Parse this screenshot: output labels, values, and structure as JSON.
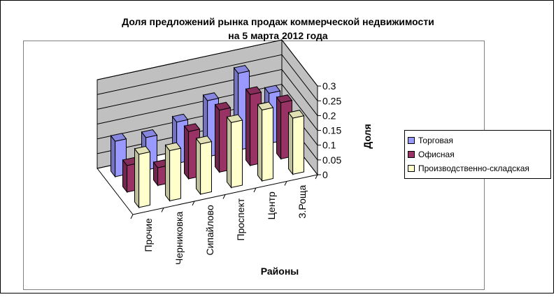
{
  "chart_data": {
    "type": "bar",
    "subtype": "3d-clustered-column",
    "title": [
      "Доля предложений рынка продаж коммерческой недвижимости",
      "на 5 марта 2012 года"
    ],
    "xlabel": "Районы",
    "ylabel": "Доля",
    "categories": [
      "Прочие",
      "Черниковка",
      "Сипайлово",
      "Проспект",
      "Центр",
      "З.Роща"
    ],
    "series": [
      {
        "name": "Торговая",
        "color": "#9999FF",
        "values": [
          0.12,
          0.11,
          0.14,
          0.19,
          0.26,
          0.17
        ]
      },
      {
        "name": "Офисная",
        "color": "#993366",
        "values": [
          0.09,
          0.06,
          0.16,
          0.21,
          0.24,
          0.19
        ]
      },
      {
        "name": "Производственно-складская",
        "color": "#FFFFCC",
        "values": [
          0.18,
          0.17,
          0.17,
          0.22,
          0.24,
          0.19
        ]
      }
    ],
    "yticks": [
      "0",
      "0.05",
      "0.1",
      "0.15",
      "0.2",
      "0.25",
      "0.3"
    ],
    "ylim": [
      0,
      0.3
    ],
    "grid": true,
    "wall_color": "#C0C0C0",
    "legend": "right"
  }
}
